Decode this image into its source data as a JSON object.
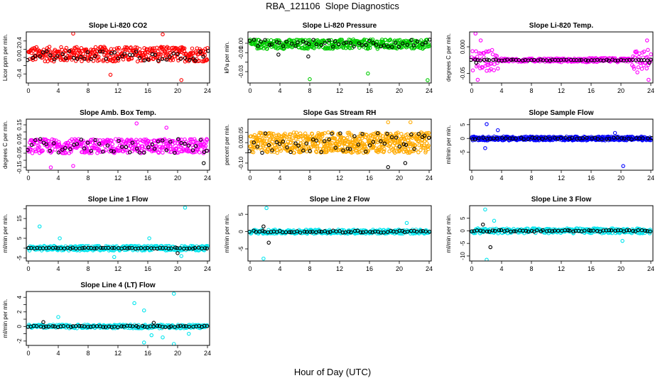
{
  "figure": {
    "title": "RBA_121106  Slope Diagnostics",
    "xlabel": "Hour of Day (UTC)"
  },
  "chart_data": [
    {
      "type": "scatter",
      "title": "Slope Li-820 CO2",
      "ylabel": "Licor ppm per min.",
      "xlim": [
        0,
        24
      ],
      "xticks": [
        0,
        4,
        8,
        12,
        16,
        20,
        24
      ],
      "ylim": [
        -0.62,
        0.62
      ],
      "yticks": [
        -0.4,
        -0.2,
        0.0,
        0.2,
        0.4
      ],
      "ytick_labels": [
        "-0.4",
        "0.0",
        "0.2",
        "0.4"
      ],
      "ytick_label_values": [
        -0.4,
        0.0,
        0.2,
        0.4
      ],
      "series": [
        {
          "color": "#ff0000",
          "band": 0.18,
          "stride": 0.06,
          "offset": 0.08,
          "outliers": [
            [
              6,
              0.58
            ],
            [
              18,
              0.56
            ],
            [
              11,
              -0.42
            ],
            [
              20.5,
              -0.55
            ]
          ]
        },
        {
          "color": "#000000",
          "band": 0.12,
          "stride": 0.5,
          "offset": 0.04,
          "outliers": []
        }
      ]
    },
    {
      "type": "scatter",
      "title": "Slope Li-820 Pressure",
      "ylabel": "kPa per min.",
      "xlim": [
        0,
        24
      ],
      "xticks": [
        0,
        4,
        8,
        12,
        16,
        20,
        24
      ],
      "ylim": [
        -0.042,
        0.012
      ],
      "yticks": [
        -0.03,
        -0.02,
        -0.01,
        0.0
      ],
      "ytick_labels": [
        "-0.03",
        "-0.01",
        "0.00"
      ],
      "ytick_label_values": [
        -0.03,
        -0.01,
        0.0
      ],
      "series": [
        {
          "color": "#00cc00",
          "band": 0.005,
          "stride": 0.06,
          "offset": -0.001,
          "outliers": [
            [
              8,
              -0.038
            ],
            [
              15.8,
              -0.032
            ],
            [
              23.8,
              -0.039
            ]
          ]
        },
        {
          "color": "#000000",
          "band": 0.004,
          "stride": 0.5,
          "offset": 0.0,
          "outliers": [
            [
              3.8,
              -0.012
            ],
            [
              7.8,
              -0.014
            ]
          ]
        }
      ]
    },
    {
      "type": "scatter",
      "title": "Slope Li-820 Temp.",
      "ylabel": "degrees C per min.",
      "xlim": [
        0,
        24
      ],
      "xticks": [
        0,
        4,
        8,
        12,
        16,
        20,
        24
      ],
      "ylim": [
        -0.068,
        0.028
      ],
      "yticks": [
        -0.05,
        0.0
      ],
      "ytick_labels": [
        "-0.05",
        "0.000"
      ],
      "ytick_label_values": [
        -0.05,
        0.0
      ],
      "series": [
        {
          "color": "#ff00ff",
          "band": 0.003,
          "stride": 0.08,
          "offset": -0.025,
          "outliers": [
            [
              0.5,
              0.025
            ],
            [
              1.2,
              0.012
            ],
            [
              0.8,
              -0.062
            ],
            [
              23.5,
              0.012
            ],
            [
              23.7,
              -0.062
            ],
            [
              2.0,
              -0.045
            ],
            [
              22.2,
              -0.048
            ]
          ]
        },
        {
          "color": "#000000",
          "band": 0.001,
          "stride": 0.4,
          "offset": -0.025,
          "outliers": [
            [
              0.6,
              -0.03
            ],
            [
              23.8,
              -0.03
            ]
          ]
        }
      ]
    },
    {
      "type": "scatter",
      "title": "Slope Amb. Box Temp.",
      "ylabel": "degrees C per min.",
      "xlim": [
        0,
        24
      ],
      "xticks": [
        0,
        4,
        8,
        12,
        16,
        20,
        24
      ],
      "ylim": [
        -0.17,
        0.19
      ],
      "yticks": [
        -0.15,
        -0.1,
        -0.05,
        0.0,
        0.05,
        0.1,
        0.15
      ],
      "ytick_labels": [
        "-0.15",
        "-0.05",
        "0.05",
        "0.15"
      ],
      "ytick_label_values": [
        -0.15,
        -0.05,
        0.05,
        0.15
      ],
      "series": [
        {
          "color": "#ff00ff",
          "band": 0.05,
          "stride": 0.06,
          "offset": 0.0,
          "outliers": [
            [
              14.5,
              0.16
            ],
            [
              18.5,
              0.13
            ],
            [
              6.0,
              -0.14
            ],
            [
              3.0,
              -0.15
            ]
          ]
        },
        {
          "color": "#000000",
          "band": 0.05,
          "stride": 0.5,
          "offset": 0.0,
          "outliers": [
            [
              23.5,
              -0.12
            ]
          ]
        }
      ]
    },
    {
      "type": "scatter",
      "title": "Slope Gas Stream RH",
      "ylabel": "percent per min.",
      "xlim": [
        0,
        24
      ],
      "xticks": [
        0,
        4,
        8,
        12,
        16,
        20,
        24
      ],
      "ylim": [
        -0.135,
        0.115
      ],
      "yticks": [
        -0.1,
        -0.05,
        0.0,
        0.05
      ],
      "ytick_labels": [
        "-0.10",
        "0.00",
        "0.05"
      ],
      "ytick_label_values": [
        -0.1,
        0.0,
        0.05
      ],
      "series": [
        {
          "color": "#ffaa00",
          "band": 0.05,
          "stride": 0.04,
          "offset": 0.0,
          "outliers": [
            [
              18.5,
              0.1
            ],
            [
              21.5,
              0.1
            ]
          ]
        },
        {
          "color": "#000000",
          "band": 0.05,
          "stride": 0.5,
          "offset": 0.0,
          "outliers": [
            [
              18.5,
              -0.12
            ],
            [
              20.8,
              -0.1
            ]
          ]
        }
      ]
    },
    {
      "type": "scatter",
      "title": "Slope Sample Flow",
      "ylabel": "ml/min per min.",
      "xlim": [
        0,
        24
      ],
      "xticks": [
        0,
        4,
        8,
        12,
        16,
        20,
        24
      ],
      "ylim": [
        -11.5,
        7.0
      ],
      "yticks": [
        -5,
        0,
        5
      ],
      "ytick_labels": [
        "-5",
        "0",
        "5"
      ],
      "ytick_label_values": [
        -5,
        0,
        5
      ],
      "series": [
        {
          "color": "#0000ff",
          "band": 0.7,
          "stride": 0.06,
          "offset": 0.0,
          "outliers": [
            [
              2.0,
              5.2
            ],
            [
              1.8,
              -3.5
            ],
            [
              3.5,
              3.0
            ],
            [
              20.3,
              -10.0
            ],
            [
              19.2,
              2.0
            ]
          ]
        },
        {
          "color": "#000000",
          "band": 0.3,
          "stride": 0.5,
          "offset": 0.0,
          "outliers": []
        }
      ]
    },
    {
      "type": "scatter",
      "title": "Slope Line 1 Flow",
      "ylabel": "ml/min per min.",
      "xlim": [
        0,
        24
      ],
      "xticks": [
        0,
        4,
        8,
        12,
        16,
        20,
        24
      ],
      "ylim": [
        -6.5,
        21.5
      ],
      "yticks": [
        -5,
        0,
        5,
        10,
        15,
        20
      ],
      "ytick_labels": [
        "-5",
        "5",
        "15"
      ],
      "ytick_label_values": [
        -5,
        5,
        15
      ],
      "series": [
        {
          "color": "#00e5ee",
          "band": 1.2,
          "stride": 0.08,
          "offset": 0.0,
          "outliers": [
            [
              1.5,
              11.0
            ],
            [
              21.0,
              20.5
            ],
            [
              4.2,
              5.0
            ],
            [
              16.2,
              5.0
            ],
            [
              20.5,
              -4.0
            ],
            [
              11.5,
              -4.5
            ]
          ]
        },
        {
          "color": "#000000",
          "band": 0.3,
          "stride": 0.4,
          "offset": 0.0,
          "outliers": [
            [
              20.0,
              -2.5
            ]
          ]
        }
      ]
    },
    {
      "type": "scatter",
      "title": "Slope Line 2 Flow",
      "ylabel": "ml/min per min.",
      "xlim": [
        0,
        24
      ],
      "xticks": [
        0,
        4,
        8,
        12,
        16,
        20,
        24
      ],
      "ylim": [
        -8.5,
        7.5
      ],
      "yticks": [
        -5,
        0,
        5
      ],
      "ytick_labels": [
        "-5",
        "0",
        "5"
      ],
      "ytick_label_values": [
        -5,
        0,
        5
      ],
      "series": [
        {
          "color": "#00e5ee",
          "band": 0.6,
          "stride": 0.08,
          "offset": 0.0,
          "outliers": [
            [
              2.2,
              6.8
            ],
            [
              1.8,
              -7.8
            ],
            [
              21.0,
              2.5
            ]
          ]
        },
        {
          "color": "#000000",
          "band": 0.3,
          "stride": 0.4,
          "offset": 0.0,
          "outliers": [
            [
              2.5,
              -3.2
            ],
            [
              1.8,
              1.5
            ]
          ]
        }
      ]
    },
    {
      "type": "scatter",
      "title": "Slope Line 3 Flow",
      "ylabel": "ml/min per min.",
      "xlim": [
        0,
        24
      ],
      "xticks": [
        0,
        4,
        8,
        12,
        16,
        20,
        24
      ],
      "ylim": [
        -12.0,
        10.0
      ],
      "yticks": [
        -10,
        -5,
        0,
        5
      ],
      "ytick_labels": [
        "-10",
        "-5",
        "0",
        "5"
      ],
      "ytick_label_values": [
        -10,
        -5,
        0,
        5
      ],
      "series": [
        {
          "color": "#00e5ee",
          "band": 1.0,
          "stride": 0.08,
          "offset": 0.0,
          "outliers": [
            [
              1.8,
              8.5
            ],
            [
              2.0,
              -11.5
            ],
            [
              20.2,
              -4.0
            ],
            [
              3.0,
              4.0
            ]
          ]
        },
        {
          "color": "#000000",
          "band": 0.3,
          "stride": 0.4,
          "offset": 0.0,
          "outliers": [
            [
              2.5,
              -6.5
            ],
            [
              1.5,
              2.5
            ]
          ]
        }
      ]
    },
    {
      "type": "scatter",
      "title": "Slope Line 4 (LT) Flow",
      "ylabel": "ml/min per min.",
      "xlim": [
        0,
        24
      ],
      "xticks": [
        0,
        4,
        8,
        12,
        16,
        20,
        24
      ],
      "ylim": [
        -2.6,
        4.8
      ],
      "yticks": [
        -2,
        -1,
        0,
        1,
        2,
        3,
        4
      ],
      "ytick_labels": [
        "-2",
        "0",
        "2",
        "4"
      ],
      "ytick_label_values": [
        -2,
        0,
        2,
        4
      ],
      "series": [
        {
          "color": "#00e5ee",
          "band": 0.25,
          "stride": 0.09,
          "offset": 0.0,
          "outliers": [
            [
              19.5,
              4.5
            ],
            [
              14.2,
              3.2
            ],
            [
              15.5,
              2.2
            ],
            [
              16.5,
              -1.2
            ],
            [
              15.5,
              -2.2
            ],
            [
              19.5,
              -2.4
            ],
            [
              4.0,
              1.3
            ],
            [
              21.5,
              -1.0
            ],
            [
              18.0,
              -1.5
            ]
          ]
        },
        {
          "color": "#000000",
          "band": 0.1,
          "stride": 0.4,
          "offset": 0.0,
          "outliers": [
            [
              2.0,
              0.6
            ],
            [
              16.8,
              0.5
            ]
          ]
        }
      ]
    }
  ]
}
